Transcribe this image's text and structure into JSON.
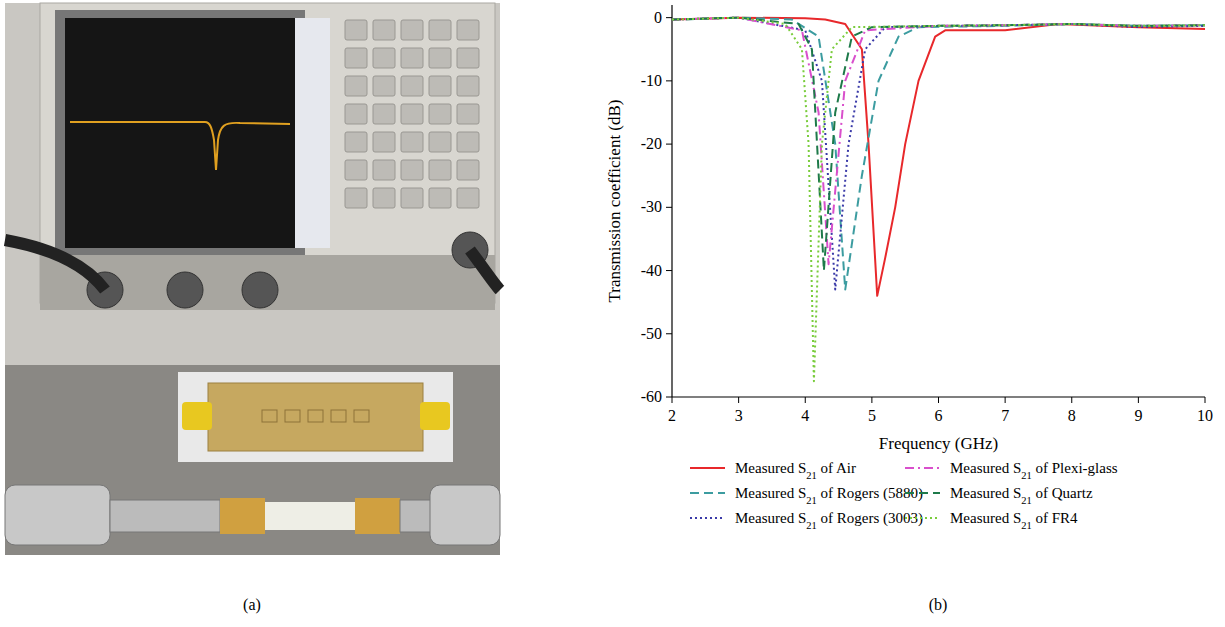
{
  "chart_data": {
    "type": "line",
    "x_label": "Frequency (GHz)",
    "y_label": "Transmission coefficient (dB)",
    "xlim": [
      2,
      10
    ],
    "xticks": [
      2,
      3,
      4,
      5,
      6,
      7,
      8,
      9,
      10
    ],
    "ylim": [
      -60,
      2
    ],
    "yticks": [
      -60,
      -50,
      -40,
      -30,
      -20,
      -10,
      0
    ],
    "grid": false,
    "legend": "bottom",
    "series": [
      {
        "name": "Measured S21 of Air",
        "color": "#e8282b",
        "line_style": "solid",
        "x": [
          2,
          3,
          4,
          4.3,
          4.6,
          4.85,
          4.95,
          5.08,
          5.2,
          5.35,
          5.5,
          5.7,
          5.95,
          6.1,
          7,
          7.8,
          9,
          10
        ],
        "values": [
          -0.3,
          0,
          -0.1,
          -0.3,
          -1,
          -5,
          -20,
          -44,
          -38,
          -30,
          -20,
          -10,
          -3,
          -2,
          -2,
          -1,
          -1.5,
          -1.8
        ]
      },
      {
        "name": "Measured S21 of Rogers (5880)",
        "color": "#3c9ca0",
        "line_style": "dashed",
        "x": [
          2,
          3,
          3.8,
          4.2,
          4.45,
          4.6,
          4.85,
          5.1,
          5.4,
          5.7,
          7,
          8,
          9,
          10
        ],
        "values": [
          -0.3,
          0,
          -0.3,
          -3,
          -20,
          -43,
          -25,
          -10,
          -3,
          -1.5,
          -1.3,
          -1,
          -1.3,
          -1.2
        ]
      },
      {
        "name": "Measured S21 of Rogers (3003)",
        "color": "#3a3aa8",
        "line_style": "dotted",
        "x": [
          2,
          3,
          4,
          4.25,
          4.45,
          4.65,
          4.9,
          5.2,
          6,
          7,
          8,
          9,
          10
        ],
        "values": [
          -0.3,
          0,
          -2,
          -10,
          -43,
          -20,
          -5,
          -1.5,
          -1.3,
          -1.2,
          -1,
          -1.5,
          -1.3
        ]
      },
      {
        "name": "Measured S21 of Plexi-glass",
        "color": "#d94fcc",
        "line_style": "dashdot",
        "x": [
          2,
          3,
          3.95,
          4.2,
          4.35,
          4.6,
          4.9,
          6,
          7,
          8,
          9,
          10
        ],
        "values": [
          -0.3,
          0,
          -2,
          -15,
          -39,
          -10,
          -2,
          -1.3,
          -1.2,
          -1,
          -1.3,
          -1.2
        ]
      },
      {
        "name": "Measured S21 of Quartz",
        "color": "#1e7a4a",
        "line_style": "dashed",
        "x": [
          2,
          3,
          3.9,
          4.1,
          4.28,
          4.45,
          4.7,
          5,
          6,
          7,
          8,
          9,
          10
        ],
        "values": [
          -0.3,
          0,
          -1,
          -5,
          -40,
          -15,
          -3,
          -1.5,
          -1.3,
          -1.2,
          -1,
          -1.3,
          -1.2
        ]
      },
      {
        "name": "Measured S21 of FR4",
        "color": "#7acc3c",
        "line_style": "dotted",
        "x": [
          2,
          3,
          3.7,
          3.95,
          4.05,
          4.13,
          4.25,
          4.4,
          4.7,
          6,
          7,
          8,
          9,
          10
        ],
        "values": [
          -0.3,
          0,
          -1,
          -5,
          -20,
          -57.5,
          -20,
          -5,
          -1.5,
          -1.3,
          -1.2,
          -1,
          -1.3,
          -1.2
        ]
      }
    ]
  },
  "panel_labels": [
    "(a)",
    "(b)"
  ]
}
